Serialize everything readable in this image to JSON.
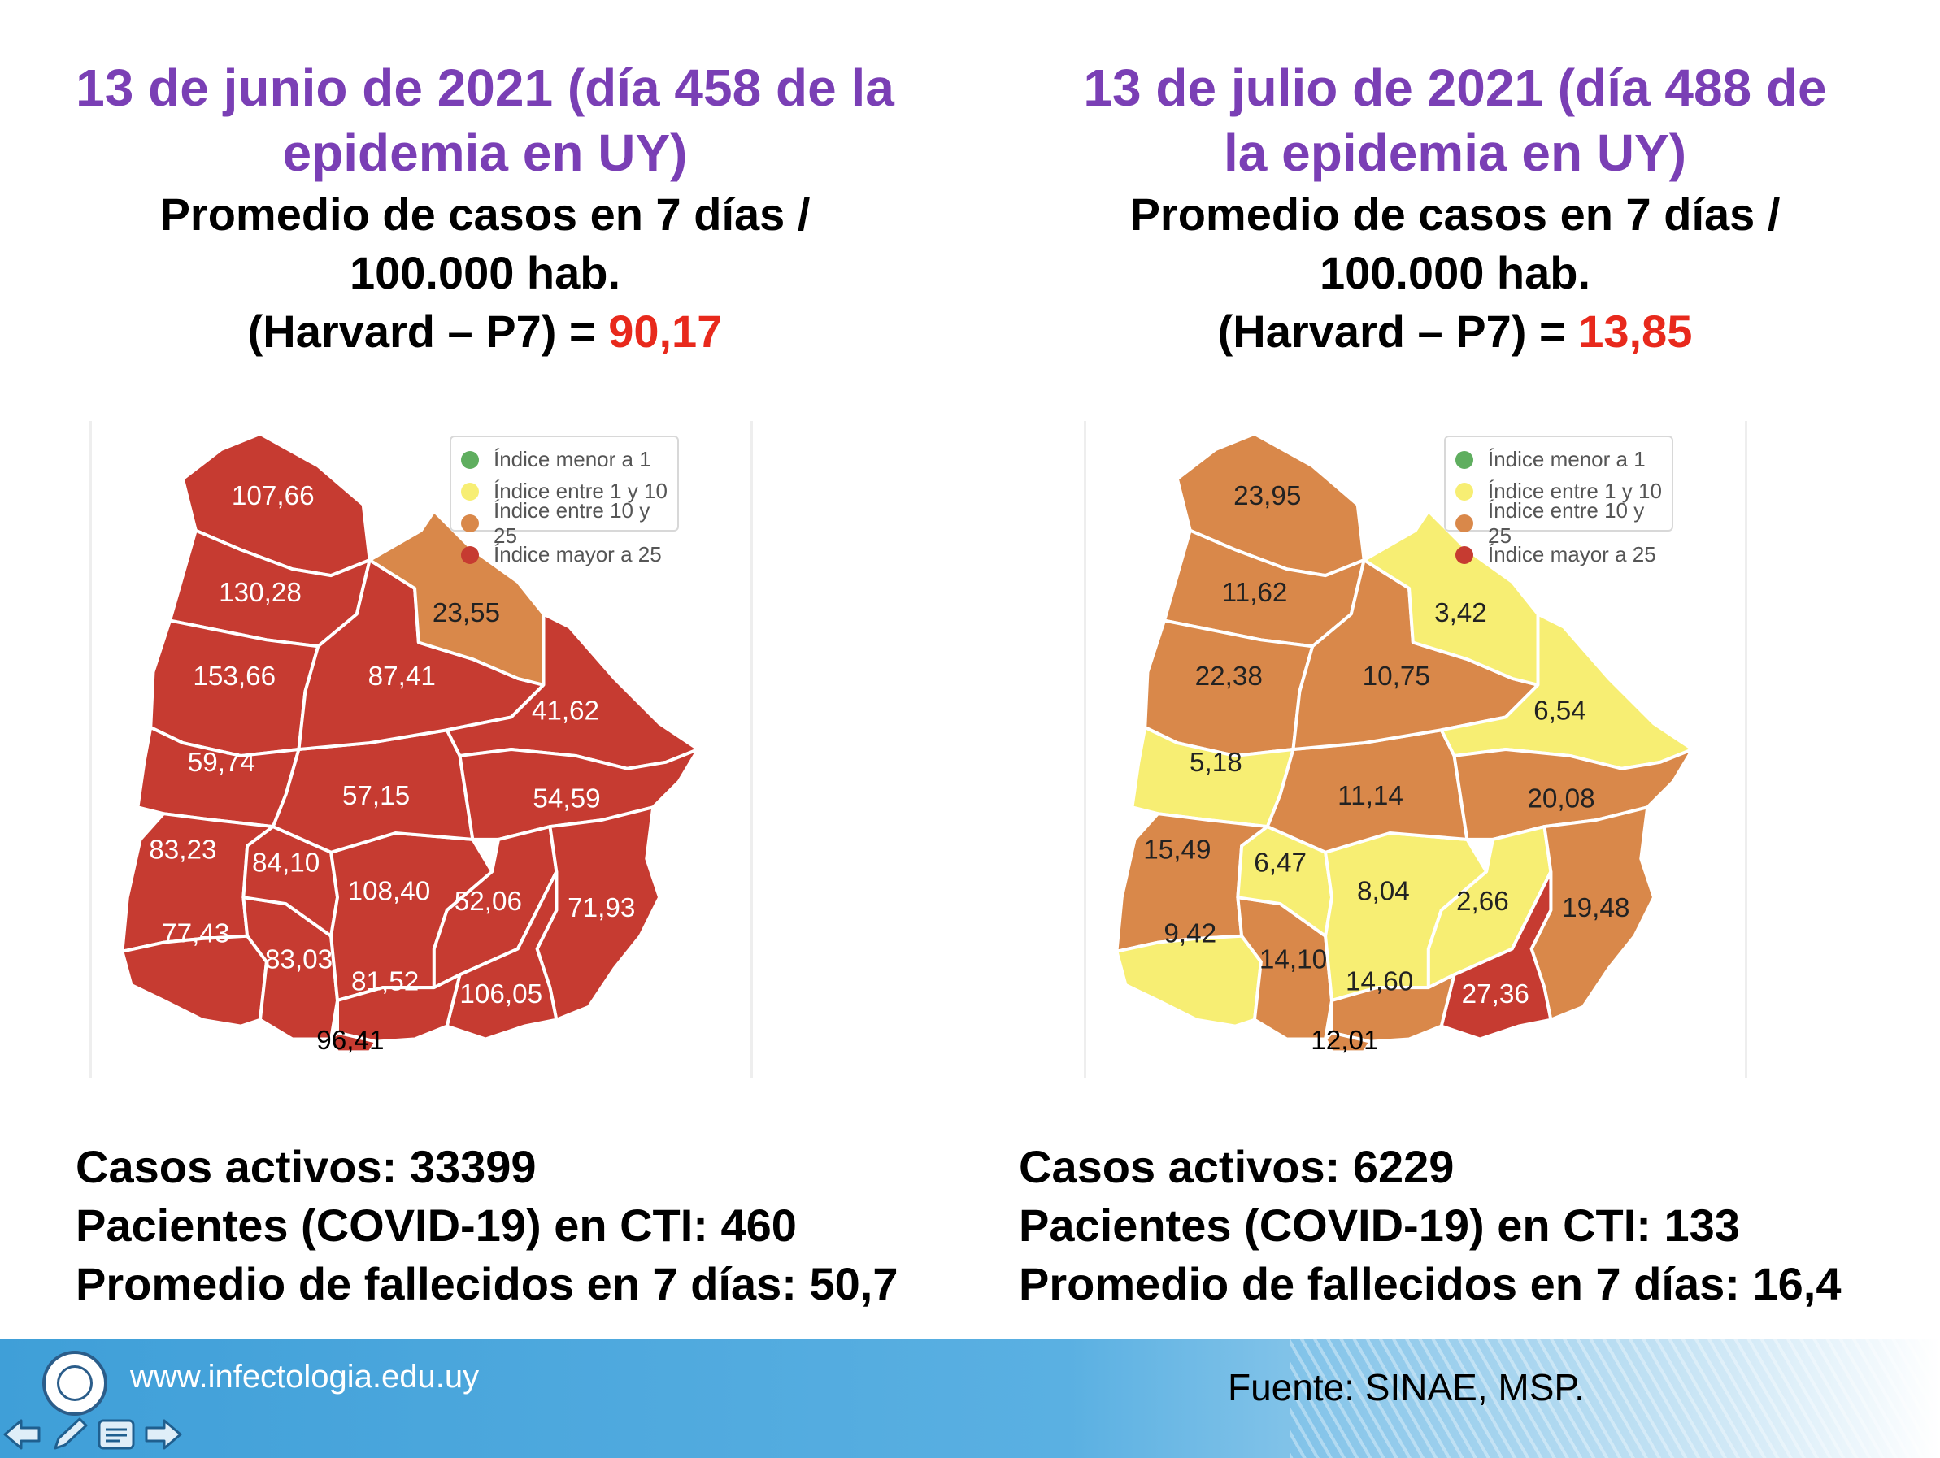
{
  "left": {
    "title_line1": "13 de junio de 2021 (día 458 de la",
    "title_line2": "epidemia en UY)",
    "subtitle_line1": "Promedio de casos en 7 días /",
    "subtitle_line2": "100.000 hab.",
    "subtitle_line3": "(Harvard – P7) = ",
    "p7_value": "90,17",
    "regions": {
      "artigas": "107,66",
      "salto": "130,28",
      "paysandu": "153,66",
      "rio_negro": "59,74",
      "soriano": "83,23",
      "colonia": "77,43",
      "san_jose": "83,03",
      "flores": "84,10",
      "florida": "108,40",
      "durazno": "57,15",
      "tacuarembo": "87,41",
      "rivera": "23,55",
      "cerro_largo": "41,62",
      "treinta_y_tres": "54,59",
      "lavalleja": "52,06",
      "rocha": "71,93",
      "maldonado": "106,05",
      "canelones": "81,52",
      "montevideo": "96,41"
    },
    "stats": {
      "active_cases": "Casos activos: 33399",
      "icu_patients": "Pacientes (COVID-19) en CTI: 460",
      "deaths_avg": "Promedio de fallecidos en 7 días: 50,7"
    }
  },
  "right": {
    "title_line1": "13 de julio de 2021 (día 488 de",
    "title_line2": "la epidemia en UY)",
    "subtitle_line1": "Promedio de casos en 7 días /",
    "subtitle_line2": "100.000 hab.",
    "subtitle_line3": "(Harvard – P7) = ",
    "p7_value": "13,85",
    "regions": {
      "artigas": "23,95",
      "salto": "11,62",
      "paysandu": "22,38",
      "rio_negro": "5,18",
      "soriano": "15,49",
      "colonia": "9,42",
      "san_jose": "14,10",
      "flores": "6,47",
      "florida": "8,04",
      "durazno": "11,14",
      "tacuarembo": "10,75",
      "rivera": "3,42",
      "cerro_largo": "6,54",
      "treinta_y_tres": "20,08",
      "lavalleja": "2,66",
      "rocha": "19,48",
      "maldonado": "27,36",
      "canelones": "14,60",
      "montevideo": "12,01"
    },
    "stats": {
      "active_cases": "Casos activos: 6229",
      "icu_patients": "Pacientes (COVID-19) en CTI: 133",
      "deaths_avg": "Promedio de fallecidos en 7 días: 16,4"
    }
  },
  "legend": {
    "items": [
      {
        "label": "Índice menor a 1",
        "color": "#5fae5f"
      },
      {
        "label": "Índice entre 1 y 10",
        "color": "#f7ee73"
      },
      {
        "label": "Índice entre 10 y 25",
        "color": "#d9884a"
      },
      {
        "label": "Índice mayor a 25",
        "color": "#c63b31"
      }
    ]
  },
  "colors": {
    "title": "#7a3fb5",
    "highlight": "#e8291c",
    "category_green": "#5fae5f",
    "category_yellow": "#f7ee73",
    "category_orange": "#d9884a",
    "category_red": "#c63b31"
  },
  "footer": {
    "website": "www.infectologia.edu.uy",
    "source": "Fuente: SINAE, MSP.",
    "nav_icons": [
      "arrow-left-icon",
      "pencil-icon",
      "notes-icon",
      "arrow-right-icon"
    ]
  }
}
